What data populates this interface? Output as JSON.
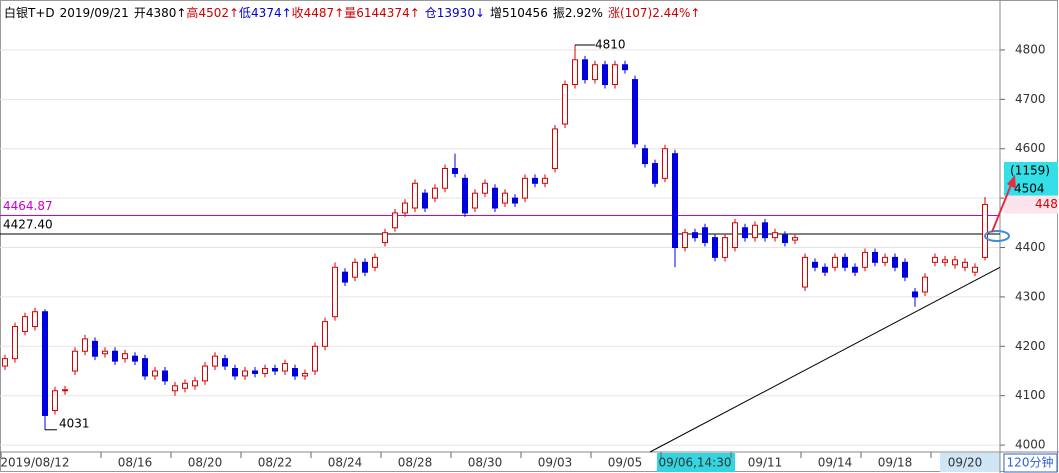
{
  "chart_data": {
    "type": "candlestick",
    "header": [
      {
        "text": "白银T+D",
        "color": "#000000"
      },
      {
        "text": "2019/09/21",
        "color": "#000000"
      },
      {
        "text": "开",
        "color": "#000000"
      },
      {
        "text": "4380↑",
        "color": "#000000"
      },
      {
        "text": "高",
        "color": "#cc0000"
      },
      {
        "text": "4502↑",
        "color": "#cc0000"
      },
      {
        "text": "低",
        "color": "#0000cc"
      },
      {
        "text": "4374↑",
        "color": "#0000cc"
      },
      {
        "text": "收",
        "color": "#cc0000"
      },
      {
        "text": "4487↑",
        "color": "#cc0000"
      },
      {
        "text": "量",
        "color": "#cc0000"
      },
      {
        "text": "6144374↑",
        "color": "#cc0000"
      },
      {
        "text": "仓",
        "color": "#0000cc"
      },
      {
        "text": "13930↓",
        "color": "#0000cc"
      },
      {
        "text": "增510456",
        "color": "#000000"
      },
      {
        "text": "振2.92%",
        "color": "#000000"
      },
      {
        "text": "涨(107)2.44%↑",
        "color": "#cc0000"
      }
    ],
    "categories": [
      null,
      null,
      null,
      "2019/08/12",
      null,
      null,
      null,
      null,
      null,
      null,
      null,
      null,
      null,
      "08/16",
      null,
      null,
      null,
      null,
      null,
      null,
      "08/20",
      null,
      null,
      null,
      null,
      null,
      null,
      "08/22",
      null,
      null,
      null,
      null,
      null,
      null,
      "08/24",
      null,
      null,
      null,
      null,
      null,
      null,
      "08/28",
      null,
      null,
      null,
      null,
      null,
      null,
      "08/30",
      null,
      null,
      null,
      null,
      null,
      null,
      "09/03",
      null,
      null,
      null,
      null,
      null,
      null,
      "09/05",
      null,
      null,
      null,
      null,
      null,
      null,
      "09/06,14:30",
      null,
      null,
      null,
      null,
      null,
      null,
      "09/11",
      null,
      null,
      null,
      null,
      null,
      null,
      "09/14",
      null,
      null,
      null,
      null,
      null,
      "09/18",
      null,
      null,
      null,
      null,
      null,
      null,
      "09/20",
      null,
      null
    ],
    "cursor_category": 69,
    "period": "120分钟",
    "open": [
      4160,
      4175,
      4230,
      4240,
      4270,
      4070,
      4110,
      4150,
      4190,
      4210,
      4185,
      4190,
      4175,
      4180,
      4175,
      4140,
      4150,
      4110,
      4115,
      4120,
      4130,
      4160,
      4175,
      4155,
      4140,
      4150,
      4145,
      4155,
      4150,
      4155,
      4140,
      4150,
      4200,
      4260,
      4350,
      4340,
      4370,
      4360,
      4410,
      4440,
      4470,
      4480,
      4510,
      4500,
      4520,
      4560,
      4540,
      4480,
      4510,
      4520,
      4490,
      4500,
      4500,
      4540,
      4530,
      4560,
      4650,
      4730,
      4780,
      4740,
      4770,
      4730,
      4770,
      4740,
      4600,
      4570,
      4540,
      4590,
      4400,
      4430,
      4440,
      4420,
      4380,
      4400,
      4440,
      4420,
      4450,
      4420,
      4425,
      4415,
      4320,
      4370,
      4360,
      4360,
      4380,
      4360,
      4360,
      4390,
      4370,
      4380,
      4370,
      4310,
      4310,
      4370,
      4370,
      4365,
      4360,
      4350,
      4380
    ],
    "high": [
      4183,
      4248,
      4268,
      4278,
      4275,
      4118,
      4120,
      4198,
      4223,
      4218,
      4198,
      4198,
      4193,
      4188,
      4183,
      4158,
      4158,
      4128,
      4133,
      4138,
      4168,
      4188,
      4183,
      4163,
      4158,
      4158,
      4163,
      4163,
      4173,
      4163,
      4153,
      4208,
      4258,
      4370,
      4358,
      4378,
      4378,
      4388,
      4438,
      4478,
      4498,
      4538,
      4518,
      4528,
      4568,
      4590,
      4548,
      4518,
      4538,
      4528,
      4518,
      4508,
      4548,
      4548,
      4548,
      4648,
      4738,
      4810,
      4788,
      4778,
      4778,
      4778,
      4778,
      4748,
      4608,
      4578,
      4608,
      4598,
      4438,
      4438,
      4448,
      4428,
      4428,
      4458,
      4448,
      4453,
      4458,
      4438,
      4433,
      4428,
      4388,
      4378,
      4368,
      4388,
      4388,
      4368,
      4398,
      4398,
      4388,
      4388,
      4378,
      4318,
      4348,
      4388,
      4383,
      4383,
      4378,
      4368,
      4502
    ],
    "low": [
      4152,
      4167,
      4222,
      4232,
      4031,
      4062,
      4102,
      4142,
      4182,
      4172,
      4177,
      4162,
      4167,
      4162,
      4132,
      4132,
      4122,
      4100,
      4107,
      4112,
      4122,
      4152,
      4152,
      4132,
      4132,
      4137,
      4137,
      4142,
      4142,
      4132,
      4132,
      4142,
      4192,
      4252,
      4322,
      4332,
      4342,
      4352,
      4402,
      4432,
      4462,
      4472,
      4472,
      4492,
      4512,
      4542,
      4462,
      4472,
      4502,
      4472,
      4482,
      4482,
      4492,
      4522,
      4522,
      4552,
      4642,
      4722,
      4732,
      4732,
      4722,
      4722,
      4752,
      4602,
      4562,
      4522,
      4532,
      4360,
      4392,
      4412,
      4402,
      4372,
      4372,
      4392,
      4412,
      4412,
      4412,
      4412,
      4402,
      4407,
      4312,
      4352,
      4342,
      4352,
      4352,
      4342,
      4352,
      4362,
      4362,
      4352,
      4332,
      4280,
      4302,
      4362,
      4362,
      4357,
      4352,
      4342,
      4374
    ],
    "close": [
      4175,
      4240,
      4260,
      4270,
      4060,
      4110,
      4112,
      4190,
      4215,
      4180,
      4190,
      4170,
      4185,
      4170,
      4140,
      4150,
      4130,
      4120,
      4125,
      4130,
      4160,
      4180,
      4160,
      4140,
      4150,
      4145,
      4155,
      4150,
      4165,
      4140,
      4145,
      4200,
      4250,
      4360,
      4330,
      4370,
      4350,
      4380,
      4430,
      4470,
      4490,
      4530,
      4480,
      4520,
      4560,
      4550,
      4470,
      4510,
      4530,
      4480,
      4510,
      4490,
      4540,
      4530,
      4540,
      4640,
      4730,
      4780,
      4740,
      4770,
      4730,
      4770,
      4760,
      4610,
      4570,
      4530,
      4600,
      4400,
      4430,
      4420,
      4410,
      4380,
      4420,
      4450,
      4420,
      4445,
      4420,
      4430,
      4410,
      4420,
      4380,
      4360,
      4350,
      4380,
      4360,
      4350,
      4390,
      4370,
      4380,
      4360,
      4340,
      4300,
      4340,
      4380,
      4375,
      4375,
      4370,
      4360,
      4487
    ],
    "up_color": "#dd0000",
    "down_color": "#0000dd",
    "ylim": [
      3986,
      4893
    ],
    "yticks": [
      4000,
      4100,
      4200,
      4300,
      4400,
      4500,
      4600,
      4700,
      4800
    ],
    "grid": true,
    "hlines": [
      {
        "value": 4464.87,
        "color": "#cc00cc"
      },
      {
        "value": 4427.4,
        "label": "4427.40",
        "color": "#000000"
      }
    ],
    "trendline": {
      "x": [
        64.5,
        99.5
      ],
      "y": [
        3986,
        4360
      ]
    },
    "cursor": {
      "label": "(1159)",
      "price": 4504
    }
  }
}
